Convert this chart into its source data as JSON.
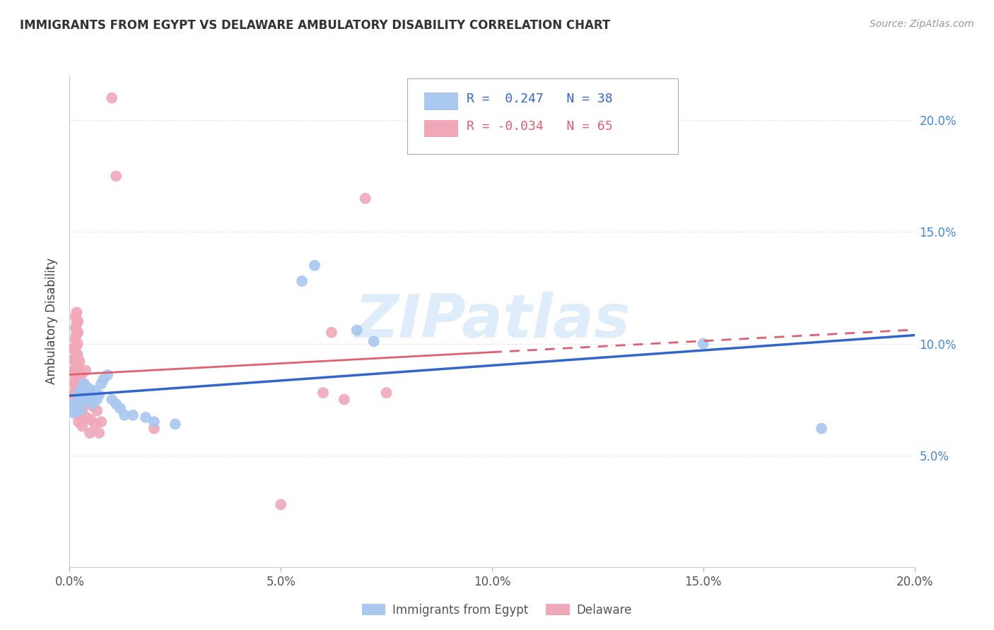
{
  "title": "IMMIGRANTS FROM EGYPT VS DELAWARE AMBULATORY DISABILITY CORRELATION CHART",
  "source": "Source: ZipAtlas.com",
  "ylabel": "Ambulatory Disability",
  "xlim": [
    0.0,
    0.2
  ],
  "ylim": [
    0.0,
    0.22
  ],
  "yticks": [
    0.05,
    0.1,
    0.15,
    0.2
  ],
  "xticks": [
    0.0,
    0.05,
    0.1,
    0.15,
    0.2
  ],
  "watermark": "ZIPatlas",
  "legend_blue_r": "R =  0.247",
  "legend_blue_n": "N = 38",
  "legend_pink_r": "R = -0.034",
  "legend_pink_n": "N = 65",
  "blue_label": "Immigrants from Egypt",
  "pink_label": "Delaware",
  "blue_color": "#a8c8f0",
  "pink_color": "#f0a8b8",
  "blue_line_color": "#3366cc",
  "pink_line_color": "#e06070",
  "blue_r": 0.247,
  "blue_n": 38,
  "pink_r": -0.034,
  "pink_n": 65,
  "blue_scatter": [
    [
      0.0008,
      0.072
    ],
    [
      0.001,
      0.069
    ],
    [
      0.0012,
      0.073
    ],
    [
      0.0015,
      0.071
    ],
    [
      0.0018,
      0.074
    ],
    [
      0.002,
      0.076
    ],
    [
      0.0022,
      0.078
    ],
    [
      0.0025,
      0.07
    ],
    [
      0.0028,
      0.079
    ],
    [
      0.003,
      0.08
    ],
    [
      0.0033,
      0.082
    ],
    [
      0.0035,
      0.075
    ],
    [
      0.0038,
      0.078
    ],
    [
      0.004,
      0.077
    ],
    [
      0.0042,
      0.074
    ],
    [
      0.0045,
      0.08
    ],
    [
      0.005,
      0.076
    ],
    [
      0.0055,
      0.073
    ],
    [
      0.006,
      0.079
    ],
    [
      0.0065,
      0.075
    ],
    [
      0.007,
      0.077
    ],
    [
      0.0075,
      0.082
    ],
    [
      0.008,
      0.084
    ],
    [
      0.009,
      0.086
    ],
    [
      0.01,
      0.075
    ],
    [
      0.011,
      0.073
    ],
    [
      0.012,
      0.071
    ],
    [
      0.013,
      0.068
    ],
    [
      0.015,
      0.068
    ],
    [
      0.018,
      0.067
    ],
    [
      0.02,
      0.065
    ],
    [
      0.025,
      0.064
    ],
    [
      0.055,
      0.128
    ],
    [
      0.058,
      0.135
    ],
    [
      0.068,
      0.106
    ],
    [
      0.072,
      0.101
    ],
    [
      0.15,
      0.1
    ],
    [
      0.178,
      0.062
    ]
  ],
  "pink_scatter": [
    [
      0.0008,
      0.078
    ],
    [
      0.0009,
      0.083
    ],
    [
      0.001,
      0.088
    ],
    [
      0.001,
      0.093
    ],
    [
      0.001,
      0.098
    ],
    [
      0.0012,
      0.075
    ],
    [
      0.0012,
      0.082
    ],
    [
      0.0012,
      0.087
    ],
    [
      0.0013,
      0.092
    ],
    [
      0.0013,
      0.097
    ],
    [
      0.0013,
      0.102
    ],
    [
      0.0014,
      0.107
    ],
    [
      0.0014,
      0.112
    ],
    [
      0.0015,
      0.072
    ],
    [
      0.0015,
      0.078
    ],
    [
      0.0015,
      0.083
    ],
    [
      0.0015,
      0.089
    ],
    [
      0.0016,
      0.094
    ],
    [
      0.0016,
      0.099
    ],
    [
      0.0016,
      0.104
    ],
    [
      0.0017,
      0.109
    ],
    [
      0.0017,
      0.114
    ],
    [
      0.0018,
      0.068
    ],
    [
      0.0018,
      0.074
    ],
    [
      0.0018,
      0.079
    ],
    [
      0.0018,
      0.085
    ],
    [
      0.0019,
      0.09
    ],
    [
      0.0019,
      0.095
    ],
    [
      0.0019,
      0.1
    ],
    [
      0.002,
      0.105
    ],
    [
      0.002,
      0.11
    ],
    [
      0.0021,
      0.065
    ],
    [
      0.0022,
      0.071
    ],
    [
      0.0022,
      0.077
    ],
    [
      0.0023,
      0.082
    ],
    [
      0.0023,
      0.087
    ],
    [
      0.0024,
      0.092
    ],
    [
      0.0025,
      0.068
    ],
    [
      0.0025,
      0.074
    ],
    [
      0.0026,
      0.08
    ],
    [
      0.0028,
      0.086
    ],
    [
      0.003,
      0.063
    ],
    [
      0.003,
      0.07
    ],
    [
      0.0032,
      0.076
    ],
    [
      0.0035,
      0.082
    ],
    [
      0.0038,
      0.088
    ],
    [
      0.004,
      0.067
    ],
    [
      0.0042,
      0.073
    ],
    [
      0.0045,
      0.079
    ],
    [
      0.0048,
      0.06
    ],
    [
      0.005,
      0.066
    ],
    [
      0.0055,
      0.072
    ],
    [
      0.006,
      0.064
    ],
    [
      0.0065,
      0.07
    ],
    [
      0.007,
      0.06
    ],
    [
      0.0075,
      0.065
    ],
    [
      0.01,
      0.21
    ],
    [
      0.011,
      0.175
    ],
    [
      0.02,
      0.062
    ],
    [
      0.05,
      0.028
    ],
    [
      0.06,
      0.078
    ],
    [
      0.062,
      0.105
    ],
    [
      0.065,
      0.075
    ],
    [
      0.07,
      0.165
    ],
    [
      0.075,
      0.078
    ]
  ],
  "background_color": "#ffffff",
  "grid_color": "#e8e8e8"
}
